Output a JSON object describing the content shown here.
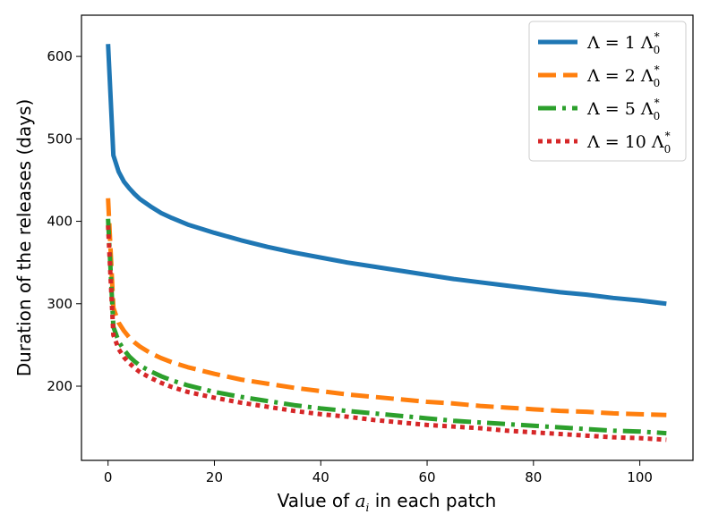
{
  "chart_data": {
    "type": "line",
    "title": "",
    "xlabel": "Value of a_i in each patch",
    "xlabel_prefix": "Value of ",
    "xlabel_var": "a",
    "xlabel_sub": "i",
    "xlabel_suffix": " in each patch",
    "ylabel": "Duration of the releases (days)",
    "xlim": [
      -5,
      110
    ],
    "ylim": [
      110,
      650
    ],
    "xticks": [
      0,
      20,
      40,
      60,
      80,
      100
    ],
    "yticks": [
      200,
      300,
      400,
      500,
      600
    ],
    "legend_position": "top-right",
    "x": [
      0,
      1,
      2,
      3,
      4,
      5,
      6,
      8,
      10,
      12,
      15,
      20,
      25,
      30,
      35,
      40,
      45,
      50,
      55,
      60,
      65,
      70,
      75,
      80,
      85,
      90,
      95,
      100,
      105
    ],
    "series": [
      {
        "name": "Λ = 1 Λ0*",
        "label_main": "Λ = 1 Λ",
        "label_sub": "0",
        "label_sup": "*",
        "color": "#1f77b4",
        "style": "solid",
        "values": [
          615,
          480,
          460,
          448,
          440,
          433,
          427,
          418,
          410,
          404,
          396,
          386,
          377,
          369,
          362,
          356,
          350,
          345,
          340,
          335,
          330,
          326,
          322,
          318,
          314,
          311,
          307,
          304,
          300
        ]
      },
      {
        "name": "Λ = 2 Λ0*",
        "label_main": "Λ = 2 Λ",
        "label_sub": "0",
        "label_sup": "*",
        "color": "#ff7f0e",
        "style": "dashed",
        "values": [
          428,
          295,
          277,
          267,
          259,
          253,
          248,
          240,
          234,
          229,
          223,
          215,
          208,
          203,
          198,
          194,
          190,
          187,
          184,
          181,
          179,
          176,
          174,
          172,
          170,
          169,
          167,
          166,
          165
        ]
      },
      {
        "name": "Λ = 5 Λ0*",
        "label_main": "Λ = 5 Λ",
        "label_sub": "0",
        "label_sup": "*",
        "color": "#2ca02c",
        "style": "dashdot",
        "values": [
          403,
          272,
          254,
          244,
          236,
          230,
          225,
          218,
          212,
          207,
          201,
          193,
          187,
          182,
          177,
          173,
          170,
          167,
          164,
          161,
          158,
          156,
          154,
          152,
          150,
          148,
          146,
          145,
          143
        ]
      },
      {
        "name": "Λ = 10 Λ0*",
        "label_main": "Λ = 10 Λ",
        "label_sub": "0",
        "label_sup": "*",
        "color": "#d62728",
        "style": "dotted",
        "values": [
          395,
          262,
          245,
          235,
          228,
          222,
          217,
          210,
          204,
          199,
          193,
          186,
          180,
          175,
          170,
          166,
          163,
          159,
          156,
          153,
          151,
          149,
          146,
          144,
          142,
          140,
          138,
          137,
          135
        ]
      }
    ]
  }
}
